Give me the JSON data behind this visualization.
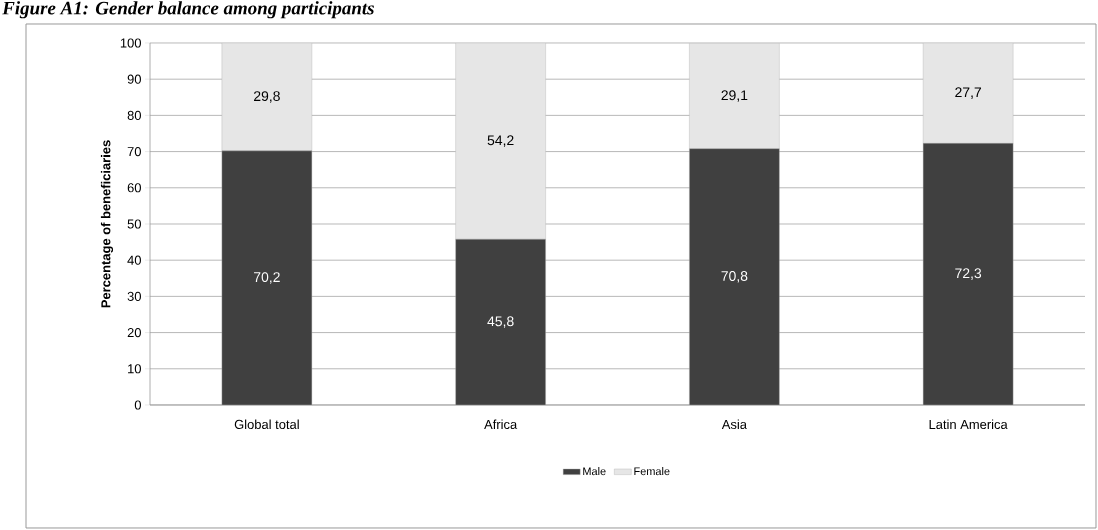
{
  "chart_data": {
    "type": "bar",
    "title": "Figure A1: Gender balance among participants",
    "ylabel": "Percentage of beneficiaries",
    "categories": [
      "Global total",
      "Africa",
      "Asia",
      "Latin America"
    ],
    "stacked": true,
    "series": [
      {
        "name": "Male",
        "color": "#404040",
        "values": [
          70.2,
          45.8,
          70.8,
          72.3
        ],
        "value_labels": [
          "70,2",
          "45,8",
          "70,8",
          "72,3"
        ]
      },
      {
        "name": "Female",
        "color": "#e6e6e6",
        "values": [
          29.8,
          54.2,
          29.1,
          27.7
        ],
        "value_labels": [
          "29,8",
          "54,2",
          "29,1",
          "27,7"
        ]
      }
    ],
    "ylim": [
      0,
      100
    ],
    "yticks": [
      0,
      10,
      20,
      30,
      40,
      50,
      60,
      70,
      80,
      90,
      100
    ],
    "grid": "y",
    "legend": "bottom"
  }
}
